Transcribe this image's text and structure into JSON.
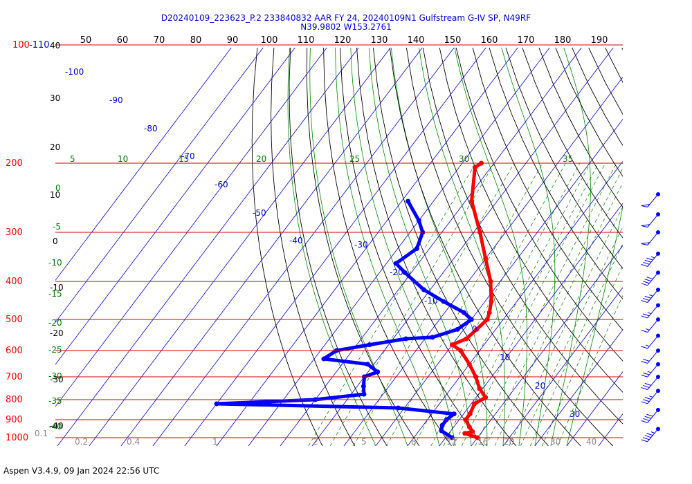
{
  "header": {
    "line1": "D20240109_223623_P.2 233840832 AAR FY 24, 20240109N1 Gulfstream G-IV SP, N49RF",
    "line2": "N39.9802 W153.2761"
  },
  "footer": {
    "text": "Aspen V3.4.9, 09 Jan 2024  22:56 UTC"
  },
  "colors": {
    "temperature": "#ff0000",
    "dewpoint": "#0000ff",
    "isobar": "#cc0000",
    "isotherm": "#0000cc",
    "dry_adiabat": "#000000",
    "mixing_ratio": "#007700",
    "moist_adiabat": "#008800",
    "saturated_gray": "#888888"
  },
  "chart_data": {
    "type": "skew-t log-p",
    "pressure_axis": {
      "levels": [
        100,
        200,
        300,
        400,
        500,
        600,
        700,
        800,
        900,
        1000
      ],
      "labels": [
        "100",
        "200",
        "300",
        "400",
        "500",
        "600",
        "700",
        "800",
        "900",
        "1000"
      ],
      "top_left_label": "-110",
      "ylim": [
        100,
        1000
      ]
    },
    "temperature_axis": {
      "top_labels": [
        "50",
        "60",
        "70",
        "80",
        "90",
        "100",
        "110",
        "120",
        "130",
        "140",
        "150",
        "160",
        "170",
        "180",
        "190"
      ]
    },
    "isotherm_labels": [
      "-100",
      "-90",
      "-80",
      "-70",
      "-60",
      "-50",
      "-40",
      "-30",
      "-20",
      "-10",
      "0",
      "10",
      "20",
      "30"
    ],
    "isotherm_values": [
      -100,
      -90,
      -80,
      -70,
      -60,
      -50,
      -40,
      -30,
      -20,
      -10,
      0,
      10,
      20,
      30
    ],
    "left_black_labels": [
      "40",
      "30",
      "20",
      "10",
      "0",
      "-10",
      "-20",
      "-30",
      "-40"
    ],
    "left_green_labels": [
      "0",
      "-5",
      "-10",
      "-15",
      "-20",
      "-25",
      "-30",
      "-35",
      "-40"
    ],
    "green_top_labels": [
      "5",
      "10",
      "15",
      "20",
      "25",
      "30",
      "35"
    ],
    "mixing_ratio_labels": [
      "0.1",
      "0.2",
      "0.4",
      "1",
      "2",
      "4",
      "5",
      "8",
      "12",
      "16",
      "20",
      "30",
      "40"
    ],
    "temperature_profile": [
      {
        "p": 200,
        "t": -54
      },
      {
        "p": 205,
        "t": -55
      },
      {
        "p": 250,
        "t": -48
      },
      {
        "p": 300,
        "t": -38
      },
      {
        "p": 350,
        "t": -30
      },
      {
        "p": 400,
        "t": -23
      },
      {
        "p": 450,
        "t": -18
      },
      {
        "p": 480,
        "t": -16
      },
      {
        "p": 500,
        "t": -15
      },
      {
        "p": 530,
        "t": -16
      },
      {
        "p": 560,
        "t": -17
      },
      {
        "p": 580,
        "t": -20
      },
      {
        "p": 600,
        "t": -16
      },
      {
        "p": 650,
        "t": -10
      },
      {
        "p": 700,
        "t": -5
      },
      {
        "p": 750,
        "t": -1
      },
      {
        "p": 790,
        "t": 3
      },
      {
        "p": 820,
        "t": 1
      },
      {
        "p": 870,
        "t": 2
      },
      {
        "p": 900,
        "t": 2
      },
      {
        "p": 940,
        "t": 5
      },
      {
        "p": 965,
        "t": 7
      },
      {
        "p": 975,
        "t": 5
      },
      {
        "p": 1000,
        "t": 10
      }
    ],
    "dewpoint_profile": [
      {
        "p": 250,
        "t": -68
      },
      {
        "p": 280,
        "t": -60
      },
      {
        "p": 300,
        "t": -56
      },
      {
        "p": 330,
        "t": -54
      },
      {
        "p": 360,
        "t": -57
      },
      {
        "p": 380,
        "t": -52
      },
      {
        "p": 420,
        "t": -42
      },
      {
        "p": 450,
        "t": -33
      },
      {
        "p": 480,
        "t": -24
      },
      {
        "p": 500,
        "t": -20
      },
      {
        "p": 530,
        "t": -22
      },
      {
        "p": 555,
        "t": -28
      },
      {
        "p": 560,
        "t": -36
      },
      {
        "p": 580,
        "t": -46
      },
      {
        "p": 600,
        "t": -55
      },
      {
        "p": 630,
        "t": -57
      },
      {
        "p": 650,
        "t": -42
      },
      {
        "p": 680,
        "t": -37
      },
      {
        "p": 700,
        "t": -40
      },
      {
        "p": 740,
        "t": -38
      },
      {
        "p": 775,
        "t": -36
      },
      {
        "p": 800,
        "t": -50
      },
      {
        "p": 820,
        "t": -80
      },
      {
        "p": 840,
        "t": -22
      },
      {
        "p": 870,
        "t": -3
      },
      {
        "p": 900,
        "t": -4
      },
      {
        "p": 930,
        "t": -4
      },
      {
        "p": 960,
        "t": -3
      },
      {
        "p": 1000,
        "t": 2
      }
    ],
    "wind_barbs": [
      {
        "p": 240,
        "kt": 50
      },
      {
        "p": 270,
        "kt": 50
      },
      {
        "p": 300,
        "kt": 50
      },
      {
        "p": 340,
        "kt": 45
      },
      {
        "p": 380,
        "kt": 40
      },
      {
        "p": 420,
        "kt": 35
      },
      {
        "p": 460,
        "kt": 25
      },
      {
        "p": 500,
        "kt": 15
      },
      {
        "p": 550,
        "kt": 15
      },
      {
        "p": 600,
        "kt": 20
      },
      {
        "p": 650,
        "kt": 25
      },
      {
        "p": 700,
        "kt": 30
      },
      {
        "p": 760,
        "kt": 35
      },
      {
        "p": 850,
        "kt": 40
      },
      {
        "p": 950,
        "kt": 45
      }
    ]
  }
}
